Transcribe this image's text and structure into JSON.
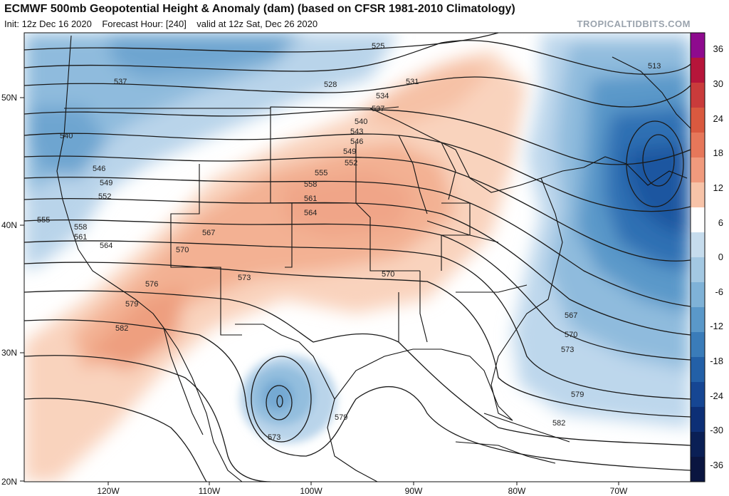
{
  "header": {
    "title": "ECMWF 500mb Geopotential Height & Anomaly (dam) (based on CFSR 1981-2010 Climatology)",
    "init": "Init: 12z Dec 16 2020",
    "forecast_hour": "Forecast Hour: [240]",
    "valid": "valid at 12z Sat, Dec 26 2020",
    "site": "TROPICALTIDBITS.COM"
  },
  "axes": {
    "lat_labels": [
      "50N",
      "40N",
      "30N",
      "20N"
    ],
    "lon_labels": [
      "120W",
      "110W",
      "100W",
      "90W",
      "80W",
      "70W"
    ]
  },
  "colorbar": {
    "labels": [
      "36",
      "30",
      "24",
      "18",
      "12",
      "6",
      "0",
      "-6",
      "-12",
      "-18",
      "-24",
      "-30",
      "-36"
    ],
    "colors": [
      "#8e0a8e",
      "#b6153a",
      "#c93b3b",
      "#d9593f",
      "#e6775a",
      "#f09a7d",
      "#f7c3a8",
      "#ffffff",
      "#c6dced",
      "#a3c8e2",
      "#7fb2d7",
      "#5a98c9",
      "#3a7cb9",
      "#2360a7",
      "#164693",
      "#0d2f76",
      "#0a1f55",
      "#0a1540"
    ]
  },
  "contours": {
    "labels": [
      {
        "v": "525"
      },
      {
        "v": "537"
      },
      {
        "v": "528"
      },
      {
        "v": "531"
      },
      {
        "v": "534"
      },
      {
        "v": "537"
      },
      {
        "v": "540"
      },
      {
        "v": "543"
      },
      {
        "v": "546"
      },
      {
        "v": "549"
      },
      {
        "v": "552"
      },
      {
        "v": "555"
      },
      {
        "v": "558"
      },
      {
        "v": "561"
      },
      {
        "v": "564"
      },
      {
        "v": "567"
      },
      {
        "v": "570"
      },
      {
        "v": "573"
      },
      {
        "v": "570"
      },
      {
        "v": "540"
      },
      {
        "v": "546"
      },
      {
        "v": "549"
      },
      {
        "v": "552"
      },
      {
        "v": "555"
      },
      {
        "v": "558"
      },
      {
        "v": "561"
      },
      {
        "v": "564"
      },
      {
        "v": "567"
      },
      {
        "v": "570"
      },
      {
        "v": "573"
      },
      {
        "v": "576"
      },
      {
        "v": "579"
      },
      {
        "v": "582"
      },
      {
        "v": "573"
      },
      {
        "v": "579"
      },
      {
        "v": "513"
      },
      {
        "v": "567"
      },
      {
        "v": "570"
      },
      {
        "v": "573"
      },
      {
        "v": "579"
      },
      {
        "v": "582"
      }
    ]
  }
}
